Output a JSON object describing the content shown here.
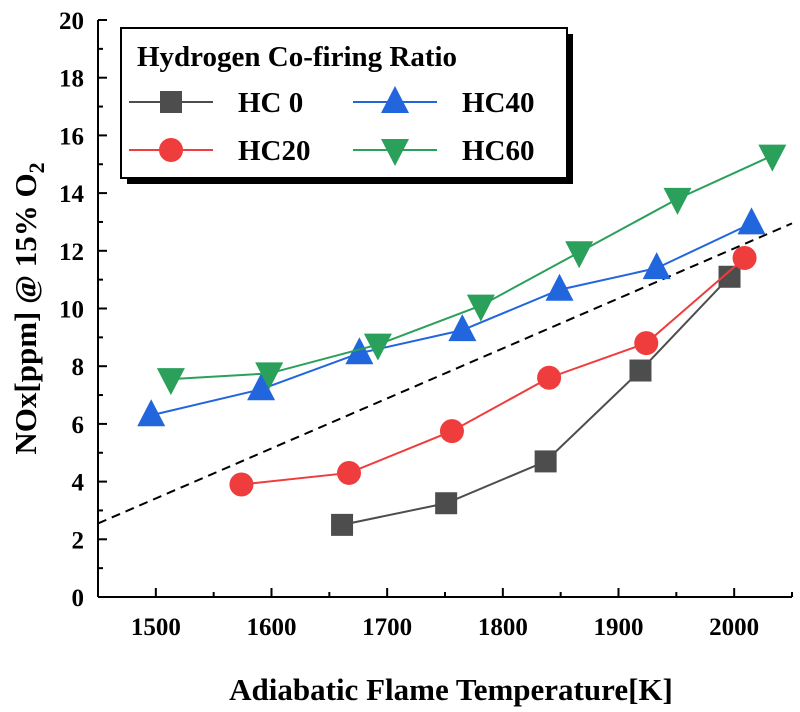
{
  "chart_data": {
    "type": "line",
    "xlabel": "Adiabatic Flame Temperature[K]",
    "ylabel": "NOx[ppm] @ 15% O",
    "ylabel_subscript": "2",
    "xlim": [
      1450,
      2050
    ],
    "ylim": [
      0,
      20
    ],
    "xticks": [
      "1500",
      "1600",
      "1700",
      "1800",
      "1900",
      "2000"
    ],
    "yticks": [
      "0",
      "2",
      "4",
      "6",
      "8",
      "10",
      "12",
      "14",
      "16",
      "18",
      "20"
    ],
    "grid": false,
    "legend": {
      "title": "Hydrogen Co-firing Ratio",
      "placement": "top-left"
    },
    "series": [
      {
        "name": "HC 0",
        "color": "#4d4d4d",
        "marker": "square",
        "x": [
          1661,
          1751,
          1837,
          1919,
          1996
        ],
        "y": [
          2.5,
          3.25,
          4.7,
          7.85,
          11.1
        ]
      },
      {
        "name": "HC20",
        "color": "#ef3c3c",
        "marker": "circle",
        "x": [
          1574,
          1667,
          1756,
          1840,
          1924,
          2009
        ],
        "y": [
          3.9,
          4.3,
          5.75,
          7.6,
          8.8,
          11.75
        ]
      },
      {
        "name": "HC40",
        "color": "#2266dd",
        "marker": "triangle-up",
        "x": [
          1496,
          1591,
          1676,
          1765,
          1849,
          1933,
          2015
        ],
        "y": [
          6.3,
          7.2,
          8.45,
          9.25,
          10.65,
          11.4,
          12.95
        ]
      },
      {
        "name": "HC60",
        "color": "#2aa05a",
        "marker": "triangle-down",
        "x": [
          1513,
          1598,
          1692,
          1781,
          1866,
          1951,
          2033
        ],
        "y": [
          7.55,
          7.75,
          8.75,
          10.1,
          11.95,
          13.8,
          15.3
        ]
      }
    ],
    "reference_line": {
      "style": "dashed",
      "color": "#000000",
      "x": [
        1450,
        2050
      ],
      "y": [
        2.55,
        12.95
      ]
    }
  }
}
